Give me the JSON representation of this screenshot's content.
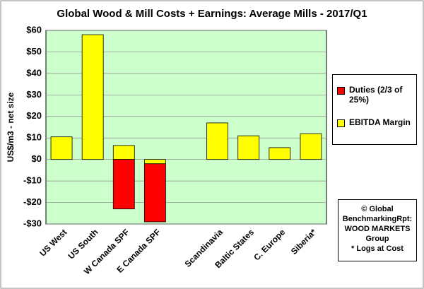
{
  "chart_data": {
    "type": "bar",
    "stacked": true,
    "title": "Global Wood & Mill Costs + Earnings: Average Mills - 2017/Q1",
    "y_label": "US$/m3 - net size",
    "categories": [
      "US West",
      "US South",
      "W Canada SPF",
      "E Canada SPF",
      null,
      "Scandinavia",
      "Baltic States",
      "C. Europe",
      "Siberia*"
    ],
    "series": [
      {
        "name": "Duties (2/3 of 25%)",
        "color": "#ff0000",
        "values": [
          null,
          null,
          -23,
          -27,
          null,
          null,
          null,
          null,
          null
        ]
      },
      {
        "name": "EBITDA Margin",
        "color": "#ffff00",
        "values": [
          10.5,
          58,
          6.5,
          -2,
          null,
          17,
          11,
          5.5,
          12
        ]
      }
    ],
    "ylim": [
      -30,
      60
    ],
    "yticks": [
      {
        "value": -30,
        "label": "-$30"
      },
      {
        "value": -20,
        "label": "-$20"
      },
      {
        "value": -10,
        "label": "-$10"
      },
      {
        "value": 0,
        "label": "$0"
      },
      {
        "value": 10,
        "label": "$10"
      },
      {
        "value": 20,
        "label": "$20"
      },
      {
        "value": 30,
        "label": "$30"
      },
      {
        "value": 40,
        "label": "$40"
      },
      {
        "value": 50,
        "label": "$50"
      },
      {
        "value": 60,
        "label": "$60"
      }
    ],
    "grid": true,
    "plot_background": "#ccffcc",
    "annotation": [
      "© Global",
      "BenchmarkingRpt:",
      "WOOD MARKETS",
      "Group",
      "* Logs at Cost"
    ]
  }
}
